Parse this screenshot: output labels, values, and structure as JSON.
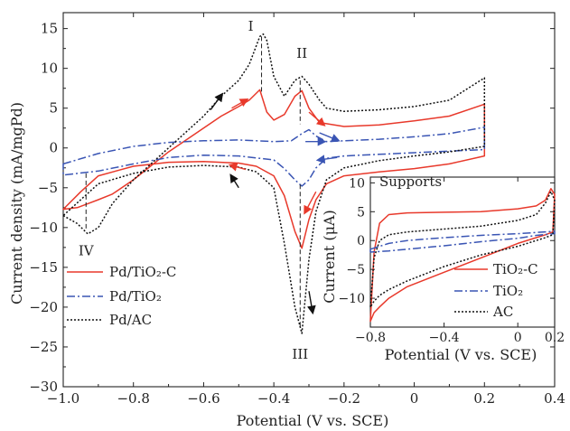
{
  "chart_data": [
    {
      "type": "line",
      "xlabel": "Potential (V vs. SCE)",
      "ylabel": "Current density (mA/mgPd)",
      "xlim": [
        -1.0,
        0.4
      ],
      "ylim": [
        -30,
        17
      ],
      "x_ticks": [
        "−1.0",
        "−0.8",
        "−0.6",
        "−0.4",
        "−0.2",
        "0",
        "0.2",
        "0.4"
      ],
      "y_ticks": [
        "15",
        "10",
        "5",
        "0",
        "−5",
        "−10",
        "−15",
        "−20",
        "−25",
        "−30"
      ],
      "x_tick_values": [
        -1.0,
        -0.8,
        -0.6,
        -0.4,
        -0.2,
        0,
        0.2,
        0.4
      ],
      "y_tick_values": [
        15,
        10,
        5,
        0,
        -5,
        -10,
        -15,
        -20,
        -25,
        -30
      ],
      "legend": "lower-left",
      "annotations": [
        {
          "text": "I",
          "x": -0.435,
          "y": 14.3
        },
        {
          "text": "II",
          "x": -0.32,
          "y": 9.5
        },
        {
          "text": "III",
          "x": -0.325,
          "y": -23.3
        },
        {
          "text": "IV",
          "x": -0.93,
          "y": -11.0
        }
      ],
      "series": [
        {
          "name": "Pd/TiO₂-C",
          "color": "#e8392b",
          "style": "solid",
          "x": [
            -1.0,
            -0.96,
            -0.93,
            -0.9,
            -0.86,
            -0.8,
            -0.7,
            -0.6,
            -0.55,
            -0.5,
            -0.47,
            -0.44,
            -0.42,
            -0.4,
            -0.37,
            -0.34,
            -0.32,
            -0.3,
            -0.27,
            -0.2,
            -0.1,
            0.0,
            0.1,
            0.2,
            0.2,
            0.1,
            0.0,
            -0.1,
            -0.2,
            -0.25,
            -0.28,
            -0.3,
            -0.32,
            -0.34,
            -0.37,
            -0.4,
            -0.45,
            -0.5,
            -0.6,
            -0.7,
            -0.8,
            -0.9,
            -0.95,
            -1.0
          ],
          "y": [
            -7.7,
            -7.5,
            -7.0,
            -6.5,
            -5.8,
            -4.0,
            -0.5,
            2.5,
            4.0,
            5.2,
            6.0,
            7.3,
            4.5,
            3.5,
            4.2,
            6.5,
            7.2,
            5.0,
            3.2,
            2.7,
            2.9,
            3.4,
            4.0,
            5.5,
            -1.0,
            -2.0,
            -2.6,
            -3.0,
            -3.5,
            -4.5,
            -6.5,
            -9.0,
            -12.6,
            -10.5,
            -6.0,
            -3.5,
            -2.3,
            -1.9,
            -1.7,
            -1.8,
            -2.3,
            -3.5,
            -5.5,
            -7.7
          ]
        },
        {
          "name": "Pd/TiO₂",
          "color": "#3a55b4",
          "style": "dashdot",
          "x": [
            -1.0,
            -0.9,
            -0.8,
            -0.7,
            -0.6,
            -0.5,
            -0.45,
            -0.4,
            -0.35,
            -0.32,
            -0.3,
            -0.28,
            -0.25,
            -0.2,
            -0.1,
            0.0,
            0.1,
            0.2,
            0.2,
            0.1,
            0.0,
            -0.1,
            -0.2,
            -0.25,
            -0.28,
            -0.3,
            -0.32,
            -0.34,
            -0.37,
            -0.4,
            -0.5,
            -0.6,
            -0.7,
            -0.8,
            -0.9,
            -1.0
          ],
          "y": [
            -2.0,
            -0.7,
            0.2,
            0.7,
            0.9,
            1.0,
            0.9,
            0.8,
            0.9,
            1.8,
            2.3,
            1.5,
            0.8,
            0.9,
            1.1,
            1.4,
            1.8,
            2.6,
            -0.2,
            -0.4,
            -0.6,
            -0.8,
            -1.0,
            -1.3,
            -2.5,
            -4.0,
            -4.8,
            -4.0,
            -2.6,
            -1.5,
            -1.0,
            -0.9,
            -1.2,
            -2.0,
            -2.9,
            -3.4
          ]
        },
        {
          "name": "Pd/AC",
          "color": "#111111",
          "style": "dotted",
          "x": [
            -1.0,
            -0.96,
            -0.93,
            -0.9,
            -0.86,
            -0.8,
            -0.7,
            -0.6,
            -0.55,
            -0.5,
            -0.47,
            -0.44,
            -0.43,
            -0.42,
            -0.4,
            -0.37,
            -0.34,
            -0.32,
            -0.3,
            -0.27,
            -0.25,
            -0.2,
            -0.1,
            0.0,
            0.1,
            0.2,
            0.2,
            0.1,
            0.0,
            -0.1,
            -0.2,
            -0.25,
            -0.28,
            -0.3,
            -0.32,
            -0.34,
            -0.37,
            -0.4,
            -0.45,
            -0.5,
            -0.6,
            -0.7,
            -0.8,
            -0.9,
            -0.95,
            -1.0
          ],
          "y": [
            -8.5,
            -9.5,
            -10.8,
            -10.0,
            -7.0,
            -4.0,
            0.0,
            4.0,
            6.5,
            8.5,
            10.5,
            14.0,
            14.3,
            13.5,
            9.0,
            6.5,
            8.5,
            9.0,
            8.0,
            6.0,
            5.0,
            4.6,
            4.8,
            5.2,
            6.0,
            8.8,
            0.2,
            -0.5,
            -1.0,
            -1.6,
            -2.5,
            -4.0,
            -8.0,
            -14.0,
            -23.3,
            -20.0,
            -12.0,
            -5.0,
            -3.0,
            -2.4,
            -2.2,
            -2.4,
            -3.2,
            -4.5,
            -6.5,
            -8.5
          ]
        }
      ]
    },
    {
      "type": "line",
      "title": "Supports",
      "xlabel": "Potential (V vs. SCE)",
      "ylabel": "Current (μA)",
      "xlim": [
        -0.8,
        0.2
      ],
      "ylim": [
        -15,
        11
      ],
      "x_ticks": [
        "−0.8",
        "−0.4",
        "0",
        "0.2"
      ],
      "y_ticks": [
        "10",
        "5",
        "0",
        "−5",
        "−10"
      ],
      "x_tick_values": [
        -0.8,
        -0.4,
        0,
        0.2
      ],
      "y_tick_values": [
        10,
        5,
        0,
        -5,
        -10
      ],
      "legend": "lower-right",
      "series": [
        {
          "name": "TiO₂-C",
          "color": "#e8392b",
          "style": "solid",
          "x": [
            -0.8,
            -0.78,
            -0.75,
            -0.7,
            -0.6,
            -0.4,
            -0.2,
            0.0,
            0.1,
            0.15,
            0.18,
            0.2,
            0.19,
            0.15,
            0.1,
            0.0,
            -0.2,
            -0.4,
            -0.6,
            -0.7,
            -0.75,
            -0.78,
            -0.8
          ],
          "y": [
            -14.0,
            -2.0,
            3.0,
            4.5,
            4.8,
            4.9,
            5.0,
            5.5,
            6.0,
            7.0,
            9.0,
            8.0,
            1.5,
            1.0,
            0.5,
            -0.5,
            -3.0,
            -5.5,
            -8.0,
            -10.0,
            -11.5,
            -12.5,
            -14.0
          ]
        },
        {
          "name": "TiO₂",
          "color": "#3a55b4",
          "style": "dashdot",
          "x": [
            -0.8,
            -0.7,
            -0.6,
            -0.4,
            -0.2,
            0.0,
            0.1,
            0.2,
            0.2,
            0.1,
            0.0,
            -0.2,
            -0.4,
            -0.6,
            -0.7,
            -0.8
          ],
          "y": [
            -1.5,
            -0.5,
            0.0,
            0.5,
            0.9,
            1.2,
            1.4,
            1.6,
            1.2,
            0.9,
            0.4,
            -0.2,
            -0.9,
            -1.5,
            -1.8,
            -2.0
          ]
        },
        {
          "name": "AC",
          "color": "#111111",
          "style": "dotted",
          "x": [
            -0.8,
            -0.78,
            -0.75,
            -0.7,
            -0.6,
            -0.4,
            -0.2,
            0.0,
            0.1,
            0.15,
            0.18,
            0.2,
            0.19,
            0.15,
            0.1,
            0.0,
            -0.2,
            -0.4,
            -0.6,
            -0.7,
            -0.75,
            -0.78,
            -0.8
          ],
          "y": [
            -11.5,
            -3.0,
            0.0,
            1.0,
            1.5,
            2.0,
            2.5,
            3.5,
            4.5,
            6.5,
            8.5,
            7.0,
            1.0,
            0.5,
            0.0,
            -1.0,
            -2.5,
            -4.5,
            -7.0,
            -8.5,
            -9.5,
            -10.5,
            -11.5
          ]
        }
      ]
    }
  ]
}
